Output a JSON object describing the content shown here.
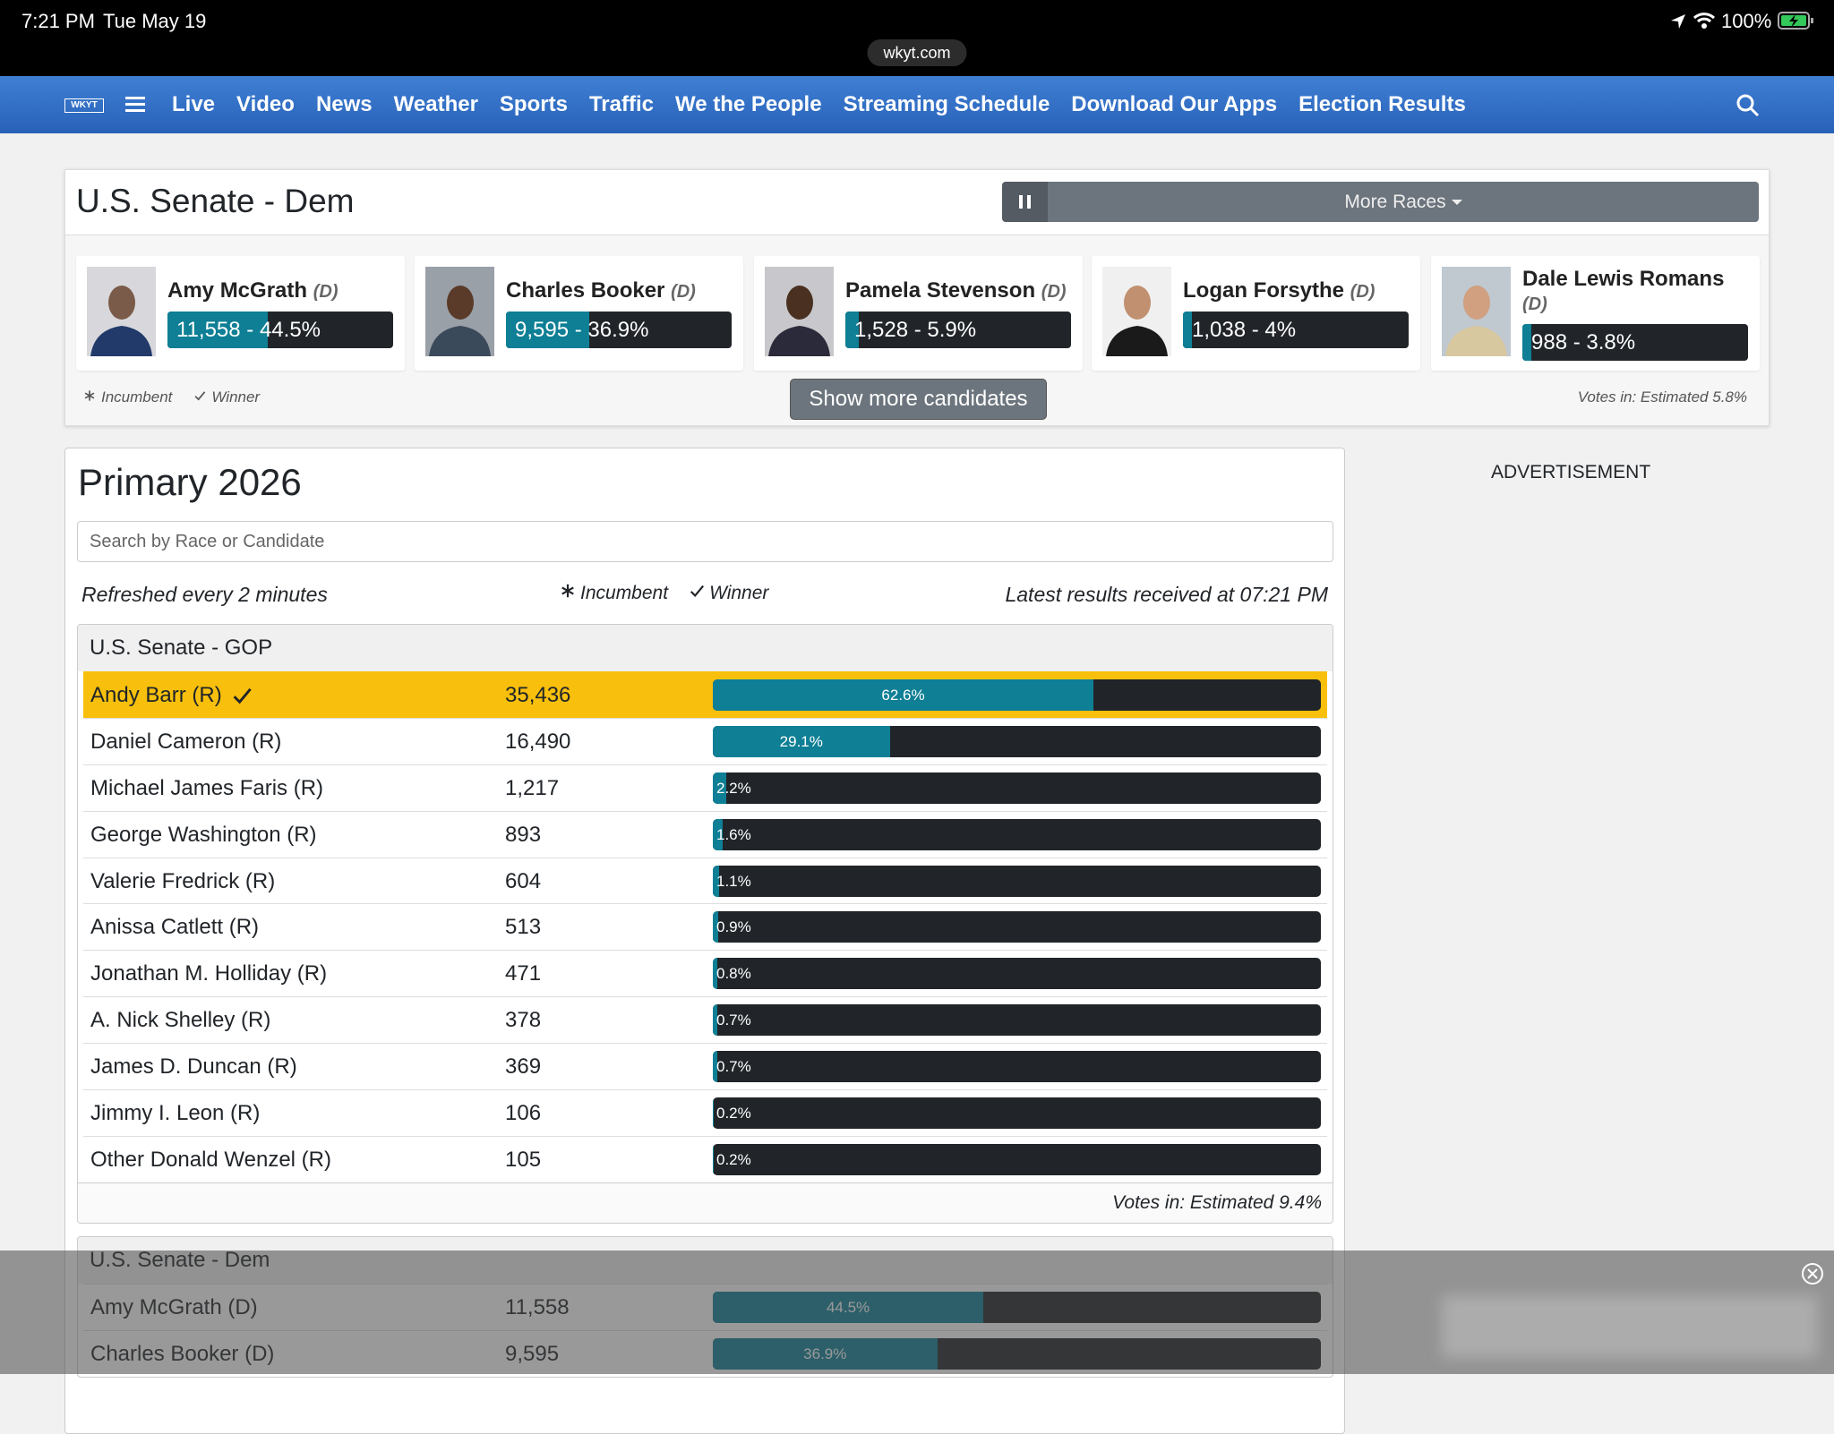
{
  "status": {
    "time": "7:21 PM",
    "date": "Tue May 19",
    "url": "wkyt.com",
    "battery": "100%"
  },
  "nav": {
    "logo": "WKYT",
    "items": [
      "Live",
      "Video",
      "News",
      "Weather",
      "Sports",
      "Traffic",
      "We the People",
      "Streaming Schedule",
      "Download Our Apps",
      "Election Results"
    ]
  },
  "featured": {
    "title": "U.S. Senate - Dem",
    "more": "More Races",
    "candidates": [
      {
        "name": "Amy McGrath",
        "party": "(D)",
        "label": "11,558 - 44.5%",
        "pct": 44.5
      },
      {
        "name": "Charles Booker",
        "party": "(D)",
        "label": "9,595 - 36.9%",
        "pct": 36.9
      },
      {
        "name": "Pamela Stevenson",
        "party": "(D)",
        "label": "1,528 - 5.9%",
        "pct": 5.9
      },
      {
        "name": "Logan Forsythe",
        "party": "(D)",
        "label": "1,038 - 4%",
        "pct": 4
      },
      {
        "name": "Dale Lewis Romans",
        "party": "(D)",
        "label": "988 - 3.8%",
        "pct": 3.8
      }
    ],
    "incumbent": "Incumbent",
    "winner": "Winner",
    "show_more": "Show more candidates",
    "votes_in": "Votes in: Estimated 5.8%"
  },
  "main": {
    "title": "Primary 2026",
    "search_placeholder": "Search by Race or Candidate",
    "refreshed": "Refreshed every 2 minutes",
    "incumbent": "Incumbent",
    "winner": "Winner",
    "latest": "Latest results received at 07:21 PM",
    "races": [
      {
        "title": "U.S. Senate - GOP",
        "rows": [
          {
            "name": "Andy Barr (R)",
            "votes": "35,436",
            "pct": 62.6,
            "pct_label": "62.6%",
            "winner": true
          },
          {
            "name": "Daniel Cameron (R)",
            "votes": "16,490",
            "pct": 29.1,
            "pct_label": "29.1%"
          },
          {
            "name": "Michael James Faris (R)",
            "votes": "1,217",
            "pct": 2.2,
            "pct_label": "2.2%"
          },
          {
            "name": "George Washington (R)",
            "votes": "893",
            "pct": 1.6,
            "pct_label": "1.6%"
          },
          {
            "name": "Valerie Fredrick (R)",
            "votes": "604",
            "pct": 1.1,
            "pct_label": "1.1%"
          },
          {
            "name": "Anissa Catlett (R)",
            "votes": "513",
            "pct": 0.9,
            "pct_label": "0.9%"
          },
          {
            "name": "Jonathan M. Holliday (R)",
            "votes": "471",
            "pct": 0.8,
            "pct_label": "0.8%"
          },
          {
            "name": "A. Nick Shelley (R)",
            "votes": "378",
            "pct": 0.7,
            "pct_label": "0.7%"
          },
          {
            "name": "James D. Duncan (R)",
            "votes": "369",
            "pct": 0.7,
            "pct_label": "0.7%"
          },
          {
            "name": "Jimmy I. Leon (R)",
            "votes": "106",
            "pct": 0.2,
            "pct_label": "0.2%"
          },
          {
            "name": "Other Donald Wenzel (R)",
            "votes": "105",
            "pct": 0.2,
            "pct_label": "0.2%"
          }
        ],
        "votes_in": "Votes in: Estimated 9.4%"
      },
      {
        "title": "U.S. Senate - Dem",
        "rows": [
          {
            "name": "Amy McGrath (D)",
            "votes": "11,558",
            "pct": 44.5,
            "pct_label": "44.5%"
          },
          {
            "name": "Charles Booker (D)",
            "votes": "9,595",
            "pct": 36.9,
            "pct_label": "36.9%"
          }
        ]
      }
    ]
  },
  "ad": "ADVERTISEMENT"
}
